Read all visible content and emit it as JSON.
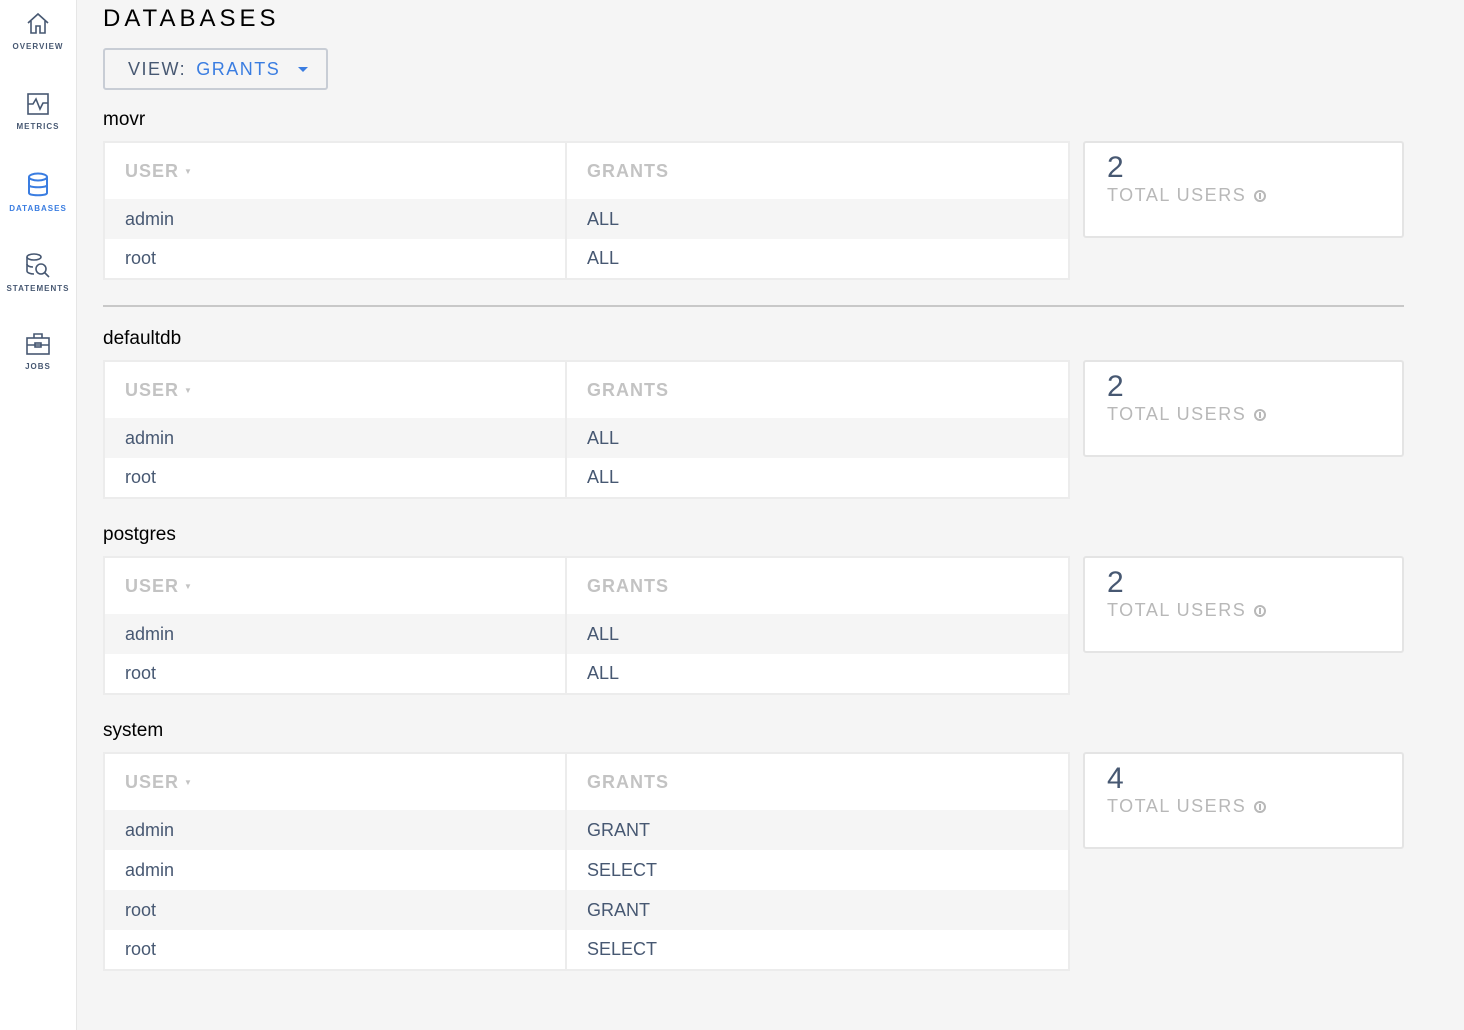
{
  "sidebar": {
    "items": [
      {
        "label": "OVERVIEW",
        "icon": "home-icon",
        "active": false
      },
      {
        "label": "METRICS",
        "icon": "metrics-icon",
        "active": false
      },
      {
        "label": "DATABASES",
        "icon": "database-icon",
        "active": true
      },
      {
        "label": "STATEMENTS",
        "icon": "statements-icon",
        "active": false
      },
      {
        "label": "JOBS",
        "icon": "jobs-icon",
        "active": false
      }
    ]
  },
  "header": {
    "title": "DATABASES"
  },
  "view_selector": {
    "label": "VIEW:",
    "value": "GRANTS"
  },
  "colors": {
    "accent": "#3a7de1",
    "text": "#475872",
    "header_text": "#c3c3c3"
  },
  "table_headers": {
    "user": "USER",
    "grants": "GRANTS"
  },
  "card_label": "TOTAL USERS",
  "databases": [
    {
      "name": "movr",
      "total_users": "2",
      "rows": [
        {
          "user": "admin",
          "grant": "ALL"
        },
        {
          "user": "root",
          "grant": "ALL"
        }
      ]
    },
    {
      "name": "defaultdb",
      "total_users": "2",
      "rows": [
        {
          "user": "admin",
          "grant": "ALL"
        },
        {
          "user": "root",
          "grant": "ALL"
        }
      ]
    },
    {
      "name": "postgres",
      "total_users": "2",
      "rows": [
        {
          "user": "admin",
          "grant": "ALL"
        },
        {
          "user": "root",
          "grant": "ALL"
        }
      ]
    },
    {
      "name": "system",
      "total_users": "4",
      "rows": [
        {
          "user": "admin",
          "grant": "GRANT"
        },
        {
          "user": "admin",
          "grant": "SELECT"
        },
        {
          "user": "root",
          "grant": "GRANT"
        },
        {
          "user": "root",
          "grant": "SELECT"
        }
      ]
    }
  ]
}
